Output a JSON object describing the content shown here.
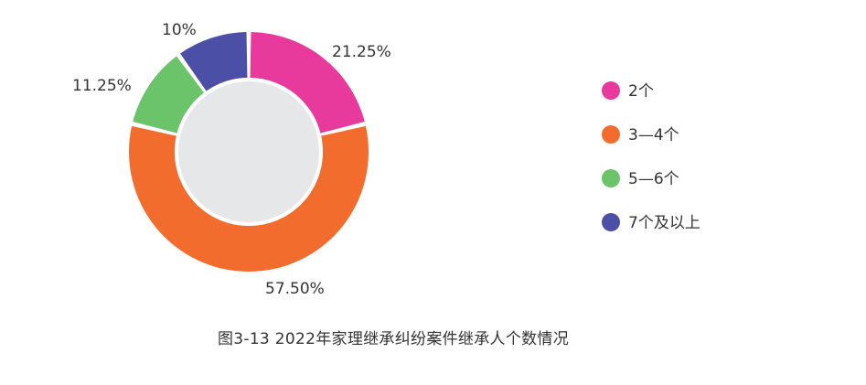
{
  "chart_data": {
    "type": "pie",
    "variant": "donut",
    "categories": [
      "2个",
      "3—4个",
      "5—6个",
      "7个及以上"
    ],
    "values": [
      21.25,
      57.5,
      11.25,
      10
    ],
    "value_labels": [
      "21.25%",
      "57.50%",
      "11.25%",
      "10%"
    ],
    "colors": [
      "#E8399D",
      "#F26C2E",
      "#6CC46A",
      "#4B4FA6"
    ],
    "center_color": "#E6E7E9",
    "legend_position": "right",
    "title": "图3-13  2022年家理继承纠纷案件继承人个数情况"
  }
}
